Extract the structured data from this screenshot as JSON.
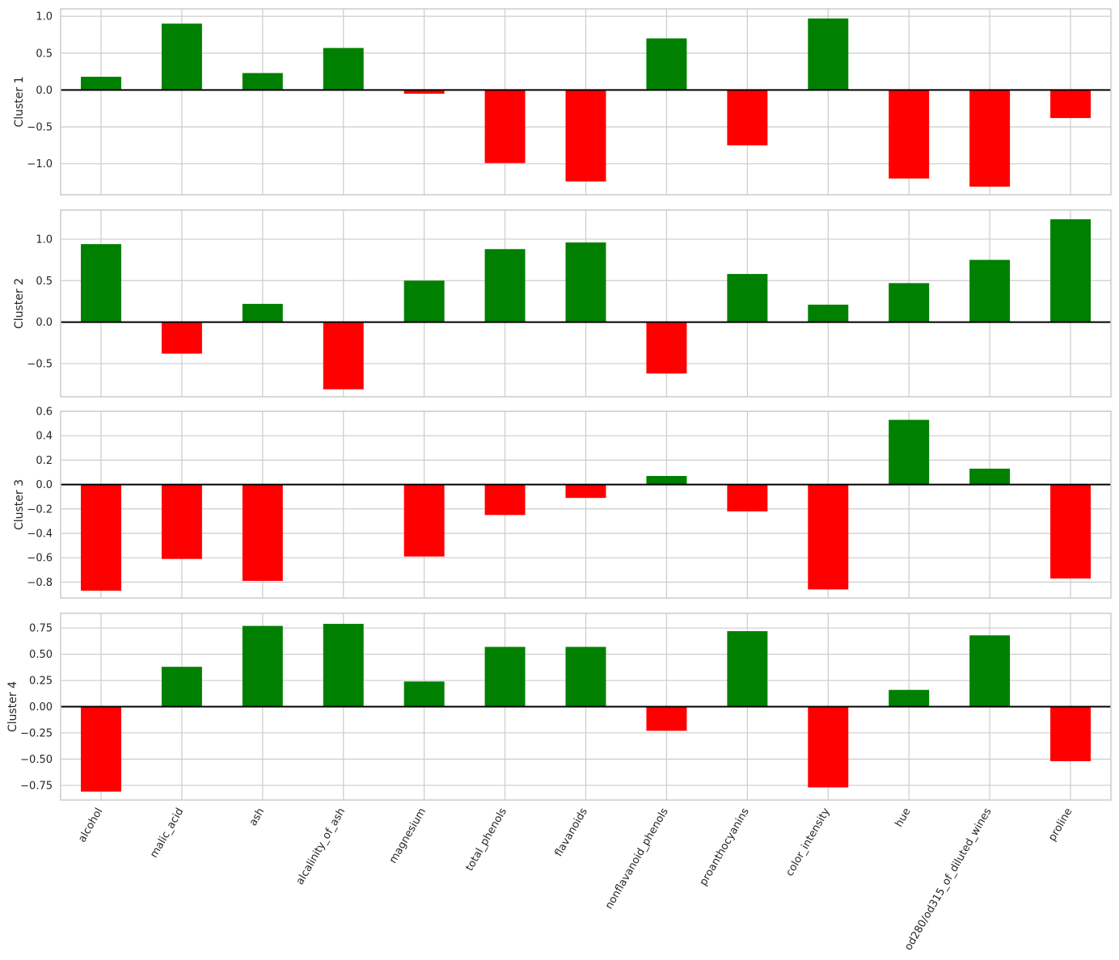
{
  "chart_data": {
    "type": "bar",
    "categories": [
      "alcohol",
      "malic_acid",
      "ash",
      "alcalinity_of_ash",
      "magnesium",
      "total_phenols",
      "flavanoids",
      "nonflavanoid_phenols",
      "proanthocyanins",
      "color_intensity",
      "hue",
      "od280/od315_of_diluted_wines",
      "proline"
    ],
    "positive_color": "#008000",
    "negative_color": "#ff0000",
    "grid": true,
    "panels": [
      {
        "ylabel": "Cluster 1",
        "ylim": [
          -1.42,
          1.1
        ],
        "yticks": [
          -1.0,
          -0.5,
          0.0,
          0.5,
          1.0
        ],
        "ytick_labels": [
          "−1.0",
          "−0.5",
          "0.0",
          "0.5",
          "1.0"
        ],
        "values": [
          0.18,
          0.9,
          0.23,
          0.57,
          -0.05,
          -0.99,
          -1.24,
          0.7,
          -0.75,
          0.97,
          -1.2,
          -1.31,
          -0.38
        ]
      },
      {
        "ylabel": "Cluster 2",
        "ylim": [
          -0.9,
          1.35
        ],
        "yticks": [
          -0.5,
          0.0,
          0.5,
          1.0
        ],
        "ytick_labels": [
          "−0.5",
          "0.0",
          "0.5",
          "1.0"
        ],
        "values": [
          0.94,
          -0.38,
          0.22,
          -0.81,
          0.5,
          0.88,
          0.96,
          -0.62,
          0.58,
          0.21,
          0.47,
          0.75,
          1.24
        ]
      },
      {
        "ylabel": "Cluster 3",
        "ylim": [
          -0.93,
          0.6
        ],
        "yticks": [
          -0.8,
          -0.6,
          -0.4,
          -0.2,
          0.0,
          0.2,
          0.4,
          0.6
        ],
        "ytick_labels": [
          "−0.8",
          "−0.6",
          "−0.4",
          "−0.2",
          "0.0",
          "0.2",
          "0.4",
          "0.6"
        ],
        "values": [
          -0.87,
          -0.61,
          -0.79,
          0.0,
          -0.59,
          -0.25,
          -0.11,
          0.07,
          -0.22,
          -0.86,
          0.53,
          0.13,
          -0.77
        ]
      },
      {
        "ylabel": "Cluster 4",
        "ylim": [
          -0.89,
          0.89
        ],
        "yticks": [
          -0.75,
          -0.5,
          -0.25,
          0.0,
          0.25,
          0.5,
          0.75
        ],
        "ytick_labels": [
          "−0.75",
          "−0.50",
          "−0.25",
          "0.00",
          "0.25",
          "0.50",
          "0.75"
        ],
        "values": [
          -0.81,
          0.38,
          0.77,
          0.79,
          0.24,
          0.57,
          0.57,
          -0.23,
          0.72,
          -0.77,
          0.16,
          0.68,
          -0.52
        ]
      }
    ]
  }
}
